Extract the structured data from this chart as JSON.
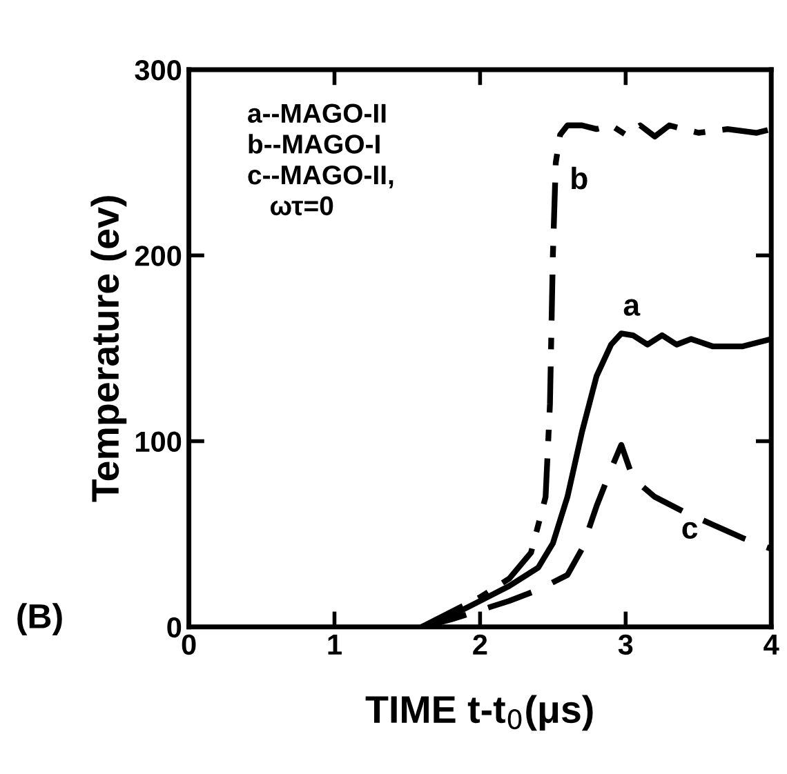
{
  "chart_data": {
    "type": "line",
    "xlabel": "TIME t-t$_{0}$(μs)",
    "ylabel": "Temperature (ev)",
    "xlim": [
      0,
      4
    ],
    "ylim": [
      0,
      300
    ],
    "xticks": [
      0,
      1,
      2,
      3,
      4
    ],
    "yticks": [
      0,
      100,
      200,
      300
    ],
    "grid": false,
    "legend": false,
    "annotations": [
      "a--MAGO-II\nb--MAGO-I\nc--MAGO-II,\n   ωτ=0",
      "(B)",
      "a",
      "b",
      "c"
    ],
    "series": [
      {
        "color": "#000000",
        "line_style": "solid",
        "x": [
          1.6,
          1.8,
          2.0,
          2.2,
          2.4,
          2.5,
          2.6,
          2.7,
          2.8,
          2.9,
          2.97,
          3.05,
          3.15,
          3.25,
          3.35,
          3.45,
          3.6,
          3.8,
          4.0
        ],
        "values": [
          0,
          6,
          14,
          22,
          32,
          45,
          70,
          105,
          135,
          152,
          158,
          157,
          152,
          157,
          152,
          155,
          151,
          151,
          155
        ]
      },
      {
        "color": "#000000",
        "line_style": "dashdot",
        "x": [
          1.6,
          1.8,
          2.0,
          2.2,
          2.35,
          2.45,
          2.48,
          2.5,
          2.52,
          2.55,
          2.6,
          2.7,
          2.8,
          2.9,
          3.0,
          3.1,
          3.2,
          3.3,
          3.5,
          3.7,
          3.9,
          4.0
        ],
        "values": [
          0,
          8,
          16,
          26,
          40,
          70,
          120,
          200,
          250,
          265,
          270,
          270,
          268,
          270,
          265,
          270,
          264,
          270,
          266,
          268,
          266,
          268
        ]
      },
      {
        "color": "#000000",
        "line_style": "dashed",
        "x": [
          1.6,
          1.8,
          2.0,
          2.2,
          2.4,
          2.6,
          2.7,
          2.8,
          2.9,
          2.97,
          3.05,
          3.2,
          3.4,
          3.6,
          3.8,
          4.0
        ],
        "values": [
          0,
          4,
          9,
          14,
          20,
          28,
          42,
          65,
          85,
          98,
          80,
          70,
          62,
          55,
          48,
          42
        ]
      }
    ]
  }
}
